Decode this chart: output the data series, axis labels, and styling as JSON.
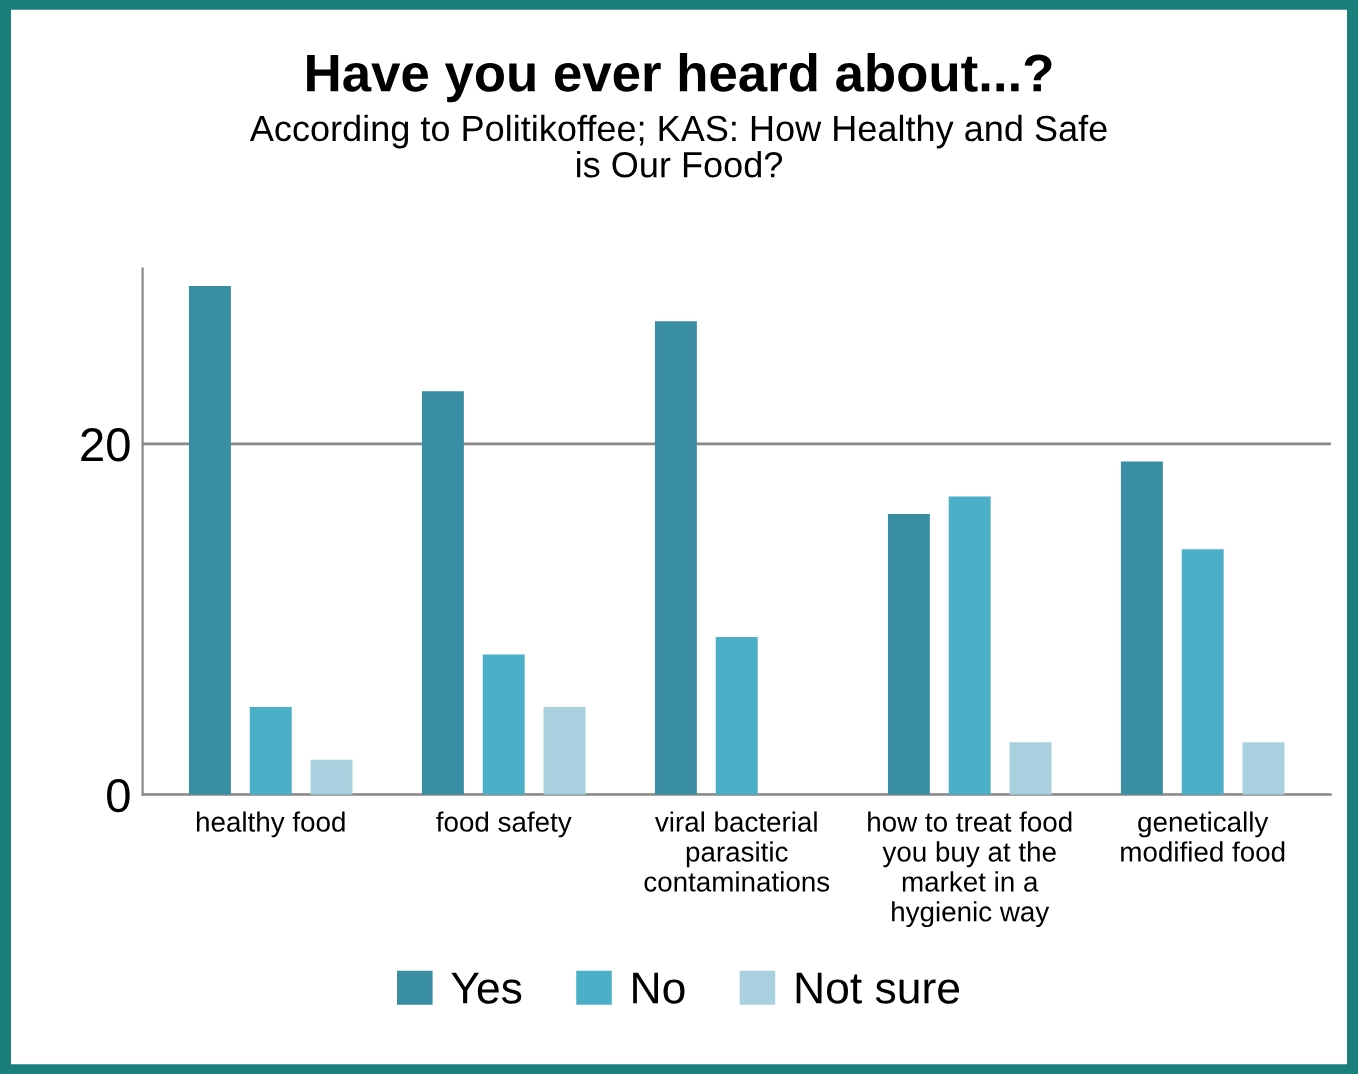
{
  "chart_data": {
    "type": "bar",
    "title": "Have you ever heard about...?",
    "subtitle": "According to Politikoffee; KAS: How Healthy and Safe\nis Our Food?",
    "categories": [
      "healthy food",
      "food safety",
      "viral bacterial\nparasitic\ncontaminations",
      "how to treat food\nyou buy at the\nmarket in a\nhygienic way",
      "genetically\nmodified food"
    ],
    "series": [
      {
        "name": "Yes",
        "color": "#3a8ea3",
        "values": [
          29,
          23,
          27,
          16,
          19
        ]
      },
      {
        "name": "No",
        "color": "#4bafc8",
        "values": [
          5,
          8,
          9,
          17,
          14
        ]
      },
      {
        "name": "Not sure",
        "color": "#a9d0de",
        "values": [
          2,
          5,
          null,
          3,
          3
        ]
      }
    ],
    "ylim": [
      0,
      30
    ],
    "yticks": [
      0,
      20
    ],
    "grid": "y",
    "legend": "bottom"
  }
}
